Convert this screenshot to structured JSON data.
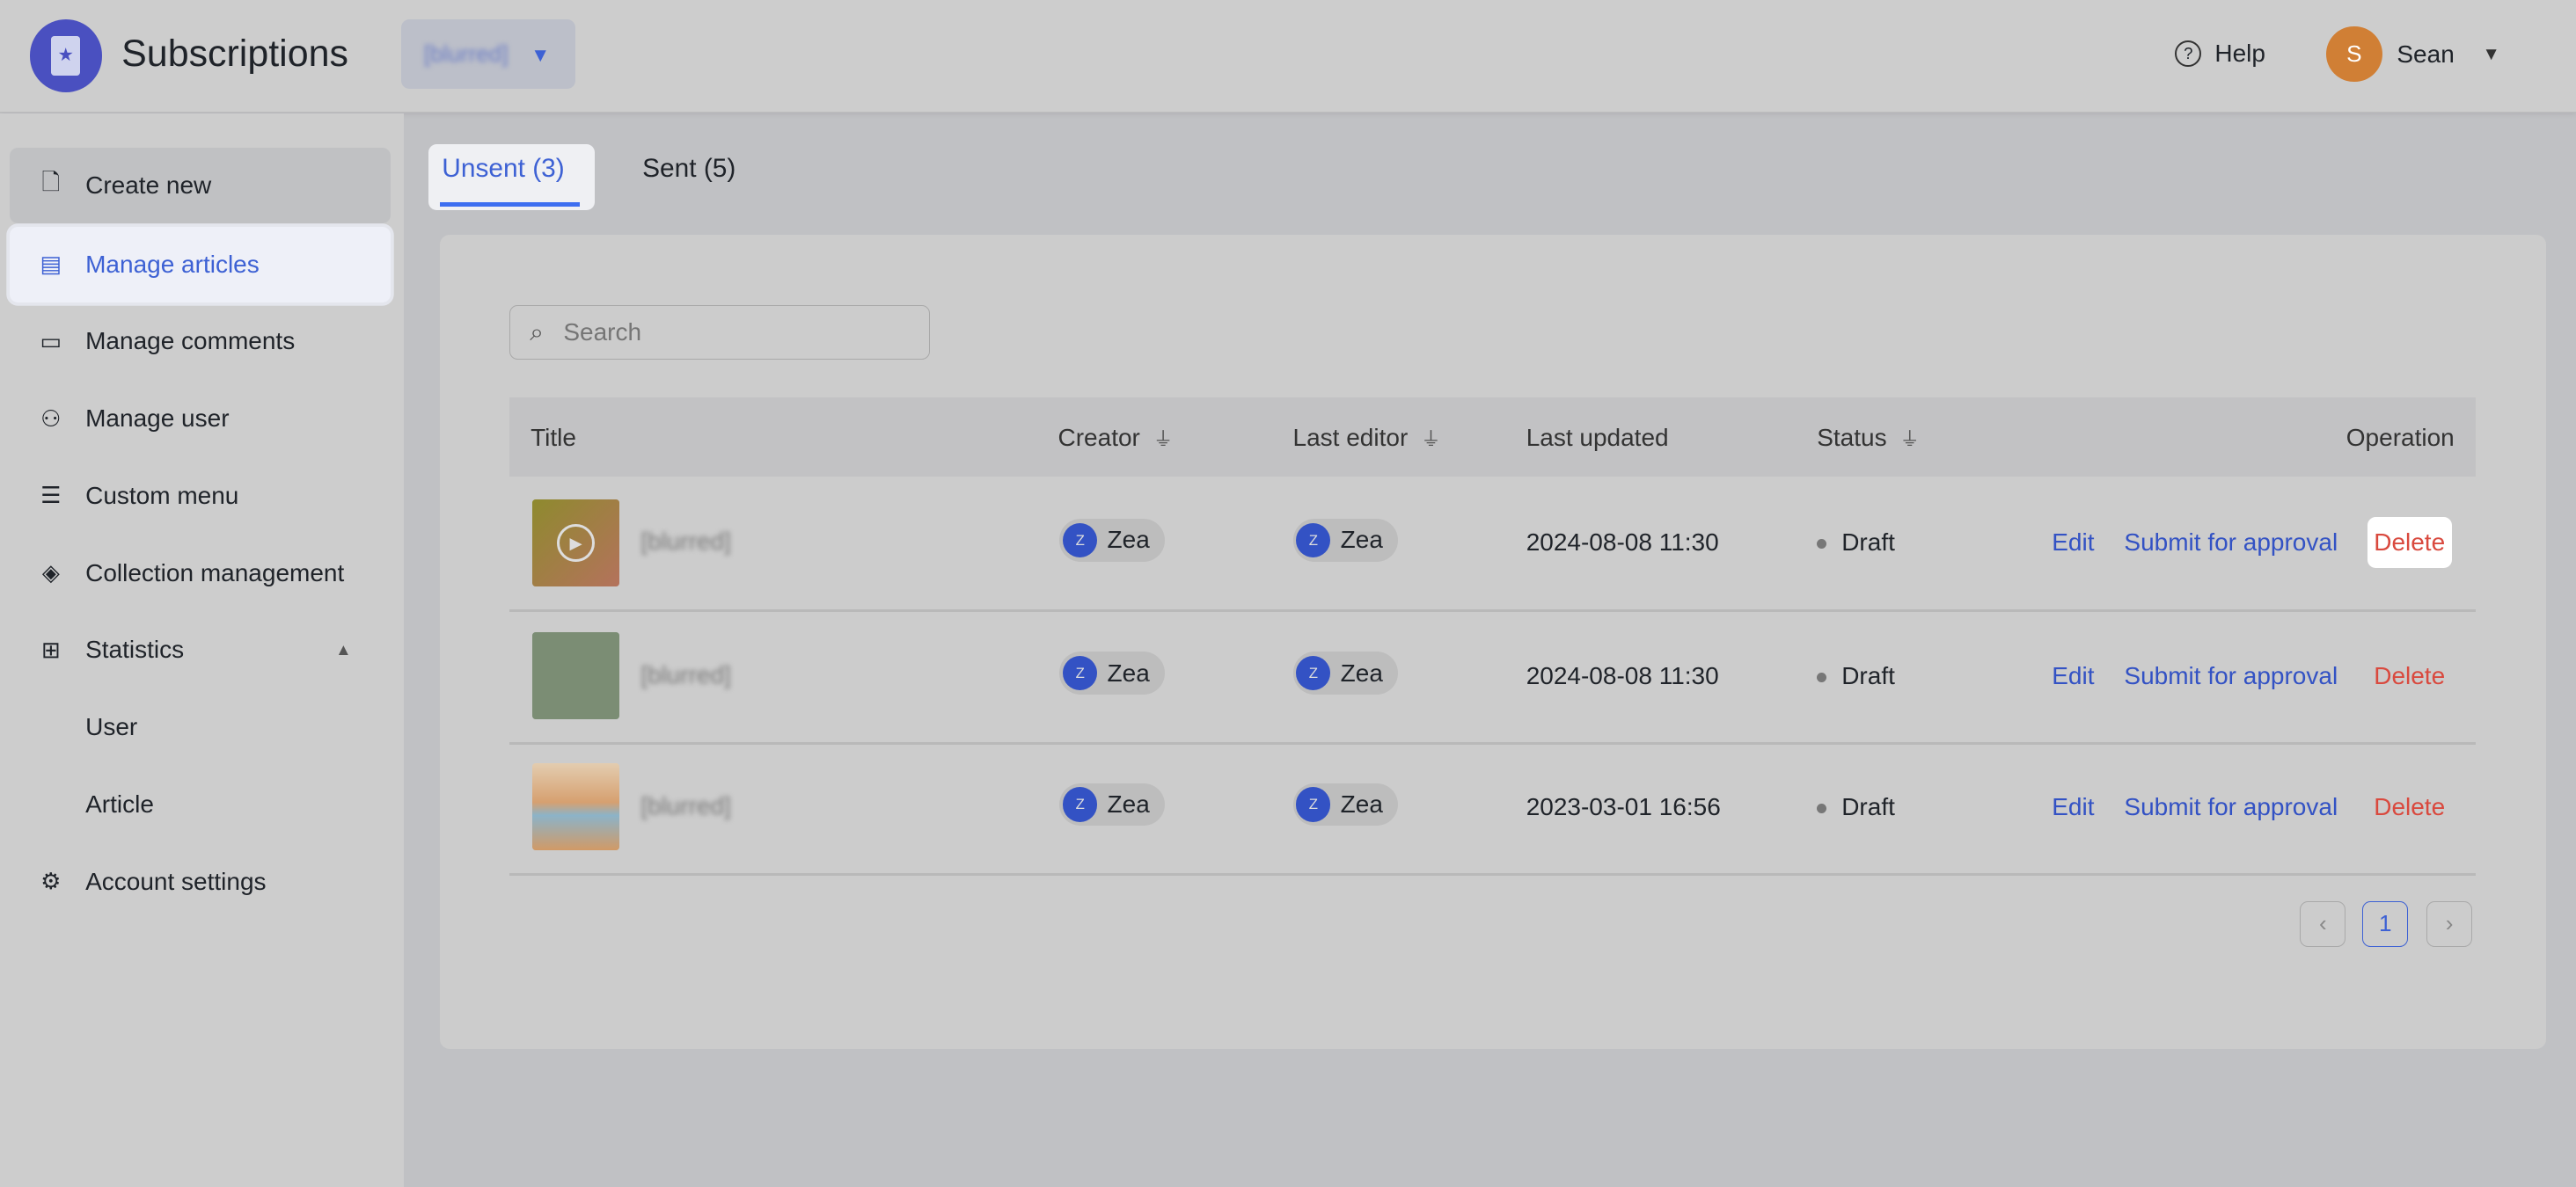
{
  "header": {
    "app_title": "Subscriptions",
    "workspace_selector": "[blurred]",
    "help_label": "Help",
    "user": {
      "initial": "S",
      "name": "Sean"
    }
  },
  "sidebar": {
    "items": [
      {
        "label": "Create new",
        "icon": "file-plus-icon"
      },
      {
        "label": "Manage articles",
        "icon": "document-icon",
        "active": true
      },
      {
        "label": "Manage comments",
        "icon": "comment-icon"
      },
      {
        "label": "Manage user",
        "icon": "users-icon"
      },
      {
        "label": "Custom menu",
        "icon": "menu-icon"
      },
      {
        "label": "Collection management",
        "icon": "layers-icon"
      },
      {
        "label": "Statistics",
        "icon": "chart-icon",
        "expanded": true
      },
      {
        "label": "User"
      },
      {
        "label": "Article"
      },
      {
        "label": "Account settings",
        "icon": "gear-icon"
      }
    ]
  },
  "tabs": [
    {
      "label": "Unsent (3)",
      "active": true
    },
    {
      "label": "Sent (5)"
    }
  ],
  "search": {
    "placeholder": "Search",
    "value": ""
  },
  "table": {
    "columns": [
      "Title",
      "Creator",
      "Last editor",
      "Last updated",
      "Status",
      "Operation"
    ],
    "rows": [
      {
        "title": "[blurred]",
        "creator": "Zea",
        "creator_initial": "Z",
        "editor": "Zea",
        "editor_initial": "Z",
        "updated": "2024-08-08 11:30",
        "status": "Draft"
      },
      {
        "title": "[blurred]",
        "creator": "Zea",
        "creator_initial": "Z",
        "editor": "Zea",
        "editor_initial": "Z",
        "updated": "2024-08-08 11:30",
        "status": "Draft"
      },
      {
        "title": "[blurred]",
        "creator": "Zea",
        "creator_initial": "Z",
        "editor": "Zea",
        "editor_initial": "Z",
        "updated": "2023-03-01 16:56",
        "status": "Draft"
      }
    ],
    "actions": {
      "edit": "Edit",
      "submit": "Submit for approval",
      "delete": "Delete"
    }
  },
  "pagination": {
    "prev": "‹",
    "current": "1",
    "next": "›"
  },
  "colors": {
    "accent": "#3d61d4",
    "danger": "#d9493e",
    "logo": "#4a50c0"
  }
}
